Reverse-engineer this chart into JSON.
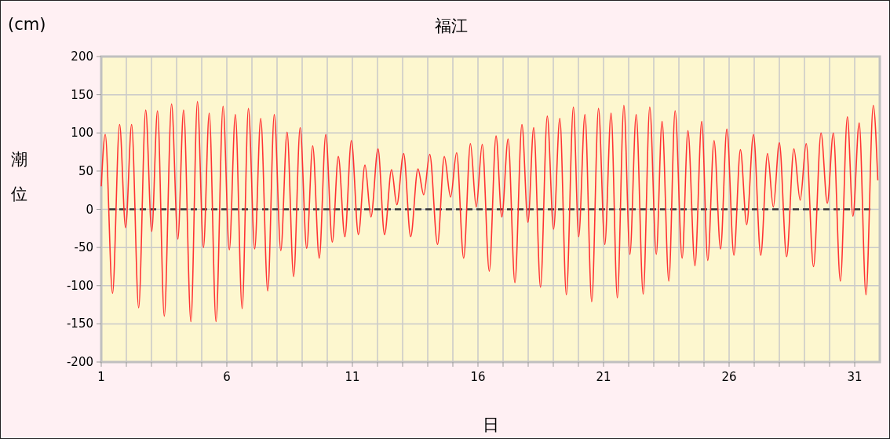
{
  "chart_data": {
    "type": "line",
    "title": "福江",
    "xlabel": "日",
    "ylabel": "潮位",
    "annotations": [
      "(cm)"
    ],
    "xlim": [
      1,
      32
    ],
    "ylim": [
      -200,
      200
    ],
    "xticks": [
      1,
      {
        "value": 2,
        "label": null
      },
      {
        "value": 3,
        "label": null
      },
      {
        "value": 4,
        "label": null
      },
      {
        "value": 5,
        "label": null
      },
      6,
      {
        "value": 7,
        "label": null
      },
      {
        "value": 8,
        "label": null
      },
      {
        "value": 9,
        "label": null
      },
      {
        "value": 10,
        "label": null
      },
      11,
      {
        "value": 12,
        "label": null
      },
      {
        "value": 13,
        "label": null
      },
      {
        "value": 14,
        "label": null
      },
      {
        "value": 15,
        "label": null
      },
      16,
      {
        "value": 17,
        "label": null
      },
      {
        "value": 18,
        "label": null
      },
      {
        "value": 19,
        "label": null
      },
      {
        "value": 20,
        "label": null
      },
      21,
      {
        "value": 22,
        "label": null
      },
      {
        "value": 23,
        "label": null
      },
      {
        "value": 24,
        "label": null
      },
      {
        "value": 25,
        "label": null
      },
      26,
      {
        "value": 27,
        "label": null
      },
      {
        "value": 28,
        "label": null
      },
      {
        "value": 29,
        "label": null
      },
      {
        "value": 30,
        "label": null
      },
      31
    ],
    "yticks": [
      -200,
      -150,
      -100,
      -50,
      0,
      50,
      100,
      150,
      200
    ],
    "grid": true,
    "marker": "none",
    "line_style": "solid",
    "ref_lines": [
      {
        "axis": "y",
        "value": 0,
        "label": null,
        "color": "#333333",
        "line_style": "dashed"
      }
    ],
    "series": [
      {
        "color": "#ff3333",
        "x": [
          1,
          1.16,
          1.45,
          1.73,
          1.97,
          2.21,
          2.49,
          2.77,
          3.01,
          3.24,
          3.51,
          3.8,
          4.05,
          4.28,
          4.57,
          4.83,
          5.07,
          5.3,
          5.57,
          5.85,
          6.1,
          6.34,
          6.61,
          6.86,
          7.11,
          7.35,
          7.63,
          7.89,
          8.15,
          8.4,
          8.66,
          8.92,
          9.18,
          9.42,
          9.68,
          9.94,
          10.2,
          10.44,
          10.7,
          10.96,
          11.24,
          11.5,
          11.74,
          12.02,
          12.28,
          12.56,
          12.77,
          13.04,
          13.32,
          13.61,
          13.84,
          14.08,
          14.39,
          14.66,
          14.91,
          15.15,
          15.43,
          15.7,
          15.93,
          16.17,
          16.45,
          16.72,
          16.95,
          17.2,
          17.47,
          17.75,
          17.99,
          18.22,
          18.49,
          18.76,
          19.01,
          19.26,
          19.52,
          19.8,
          20.01,
          20.26,
          20.53,
          20.8,
          21.05,
          21.3,
          21.55,
          21.81,
          22.05,
          22.3,
          22.58,
          22.84,
          23.1,
          23.33,
          23.6,
          23.85,
          24.13,
          24.36,
          24.64,
          24.91,
          25.15,
          25.4,
          25.66,
          25.91,
          26.19,
          26.45,
          26.7,
          26.97,
          27.26,
          27.53,
          27.76,
          28,
          28.29,
          28.58,
          28.83,
          29.07,
          29.36,
          29.66,
          29.91,
          30.15,
          30.43,
          30.71,
          30.93,
          31.18,
          31.45,
          31.74,
          31.92
        ],
        "values": [
          30,
          98,
          -110,
          111,
          -24,
          111,
          -129,
          130,
          -29,
          129,
          -140,
          138,
          -39,
          130,
          -147,
          141,
          -50,
          126,
          -147,
          135,
          -53,
          124,
          -130,
          132,
          -52,
          119,
          -107,
          124,
          -54,
          101,
          -88,
          107,
          -51,
          83,
          -64,
          98,
          -43,
          69,
          -36,
          90,
          -33,
          58,
          -10,
          79,
          -33,
          52,
          6,
          73,
          -36,
          53,
          19,
          72,
          -46,
          69,
          16,
          74,
          -64,
          86,
          3,
          85,
          -81,
          96,
          -10,
          92,
          -96,
          111,
          -17,
          107,
          -102,
          122,
          -26,
          119,
          -112,
          134,
          -36,
          124,
          -121,
          132,
          -46,
          126,
          -116,
          136,
          -59,
          124,
          -111,
          134,
          -59,
          115,
          -94,
          129,
          -64,
          103,
          -74,
          115,
          -67,
          90,
          -52,
          105,
          -60,
          78,
          -20,
          98,
          -60,
          73,
          3,
          87,
          -62,
          79,
          12,
          86,
          -75,
          100,
          8,
          100,
          -94,
          121,
          -9,
          113,
          -112,
          136,
          38
        ]
      }
    ]
  }
}
